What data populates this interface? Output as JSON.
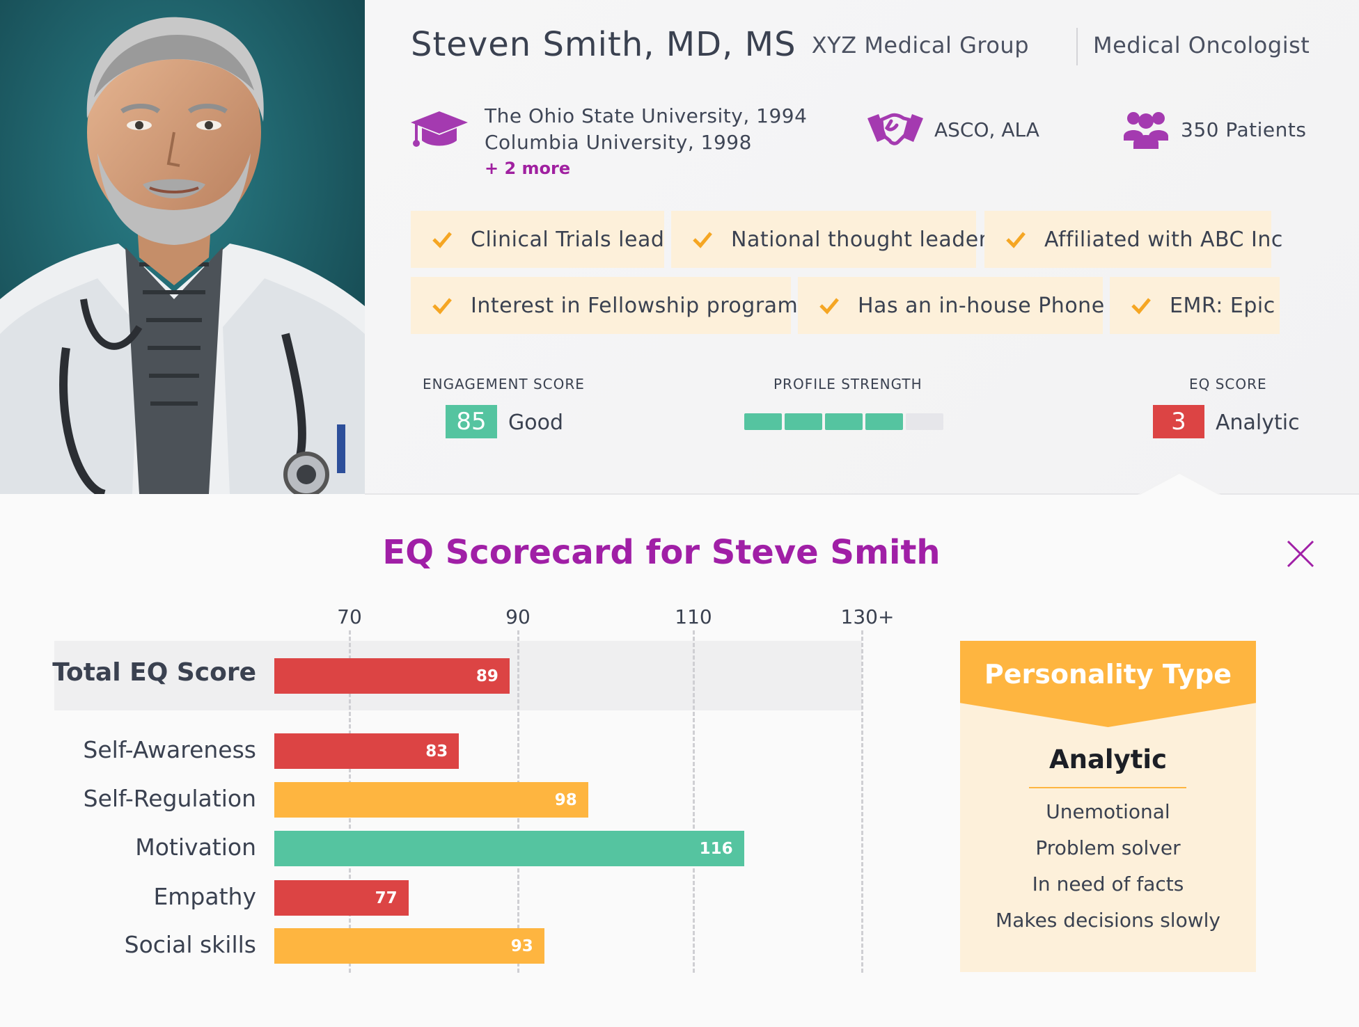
{
  "profile": {
    "name": "Steven Smith, MD, MS",
    "organization": "XYZ Medical Group",
    "specialty": "Medical Oncologist",
    "education": [
      "The Ohio State University, 1994",
      "Columbia University, 1998"
    ],
    "education_more": "+ 2 more",
    "associations": "ASCO, ALA",
    "patients": "350 Patients",
    "icons": {
      "education": "graduation-cap-icon",
      "associations": "handshake-icon",
      "patients": "people-group-icon",
      "tag": "checkmark-icon",
      "close": "close-icon"
    }
  },
  "tags": [
    "Clinical Trials lead",
    "National thought leader",
    "Affiliated with ABC Inc",
    "Interest in Fellowship programs",
    "Has an in-house Phone",
    "EMR: Epic"
  ],
  "metrics": {
    "engagement": {
      "label": "ENGAGEMENT SCORE",
      "value": "85",
      "text": "Good",
      "color": "#55c4a0"
    },
    "profile_strength": {
      "label": "PROFILE STRENGTH",
      "filled": 4,
      "total": 5,
      "fill_color": "#55c4a0",
      "empty_color": "#e6e6ea"
    },
    "eq": {
      "label": "EQ SCORE",
      "value": "3",
      "text": "Analytic",
      "color": "#dc4444"
    }
  },
  "scorecard": {
    "title": "EQ Scorecard for Steve Smith"
  },
  "chart_data": {
    "type": "bar",
    "orientation": "horizontal",
    "x_ticks": [
      "70",
      "90",
      "110",
      "130+"
    ],
    "xlim": [
      70,
      130
    ],
    "categories": [
      "Total EQ Score",
      "Self-Awareness",
      "Self-Regulation",
      "Motivation",
      "Empathy",
      "Social skills"
    ],
    "values": [
      89,
      83,
      98,
      116,
      77,
      93
    ],
    "bar_colors": [
      "#dc4444",
      "#dc4444",
      "#feb540",
      "#55c4a0",
      "#dc4444",
      "#feb540"
    ],
    "grid": "vertical dashed"
  },
  "personality": {
    "heading": "Personality Type",
    "type": "Analytic",
    "traits": [
      "Unemotional",
      "Problem solver",
      "In need of facts",
      "Makes decisions slowly"
    ],
    "accent": "#feb540"
  }
}
